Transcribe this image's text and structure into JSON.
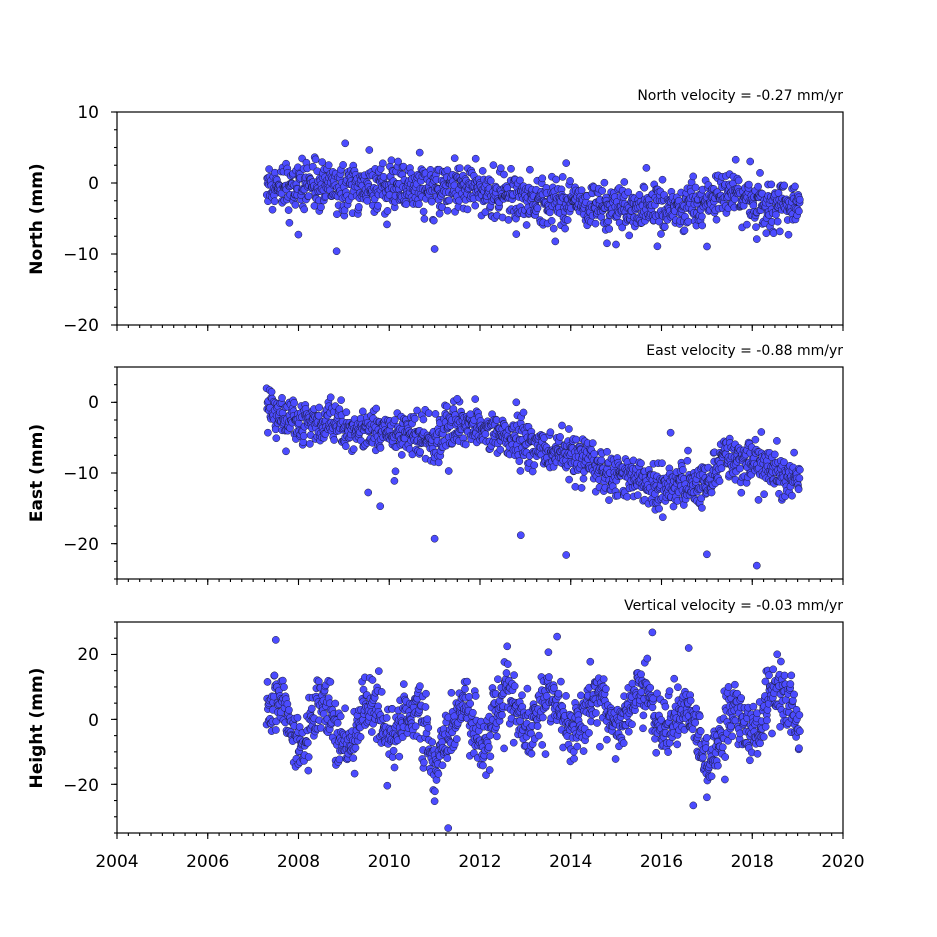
{
  "chart_data": [
    {
      "type": "scatter",
      "title": "North velocity = -0.27 mm/yr",
      "ylabel": "North (mm)",
      "xlim": [
        2004,
        2020
      ],
      "ylim": [
        -20,
        10
      ],
      "yticks": [
        10,
        0,
        -10,
        -20
      ],
      "ytick_labels": [
        "10",
        "0",
        "−10",
        "−20"
      ],
      "grid": false,
      "marker_color": "#4b4bff",
      "series": [
        {
          "x_range": [
            2007.3,
            2019.05
          ],
          "trend": [
            [
              2007.3,
              0.0
            ],
            [
              2008.5,
              -0.5
            ],
            [
              2010.0,
              -0.5
            ],
            [
              2011.5,
              -0.5
            ],
            [
              2013.0,
              -2.5
            ],
            [
              2015.0,
              -3.5
            ],
            [
              2016.5,
              -3.5
            ],
            [
              2017.3,
              -1.5
            ],
            [
              2018.5,
              -3.0
            ],
            [
              2019.05,
              -3.0
            ]
          ],
          "scatter_sd": 1.6,
          "outliers": [
            [
              2011.0,
              -9.3
            ],
            [
              2013.9,
              2.8
            ],
            [
              2014.8,
              -8.5
            ],
            [
              2018.1,
              -7.9
            ],
            [
              2012.8,
              -7.2
            ],
            [
              2007.8,
              -5.6
            ]
          ]
        }
      ]
    },
    {
      "type": "scatter",
      "title": "East velocity = -0.88 mm/yr",
      "ylabel": "East (mm)",
      "xlim": [
        2004,
        2020
      ],
      "ylim": [
        -25,
        5
      ],
      "yticks": [
        0,
        -10,
        -20
      ],
      "ytick_labels": [
        "0",
        "−10",
        "−20"
      ],
      "grid": false,
      "marker_color": "#4b4bff",
      "series": [
        {
          "x_range": [
            2007.3,
            2019.05
          ],
          "trend": [
            [
              2007.3,
              -1.0
            ],
            [
              2008.0,
              -3.0
            ],
            [
              2009.0,
              -3.5
            ],
            [
              2010.0,
              -4.0
            ],
            [
              2011.0,
              -5.5
            ],
            [
              2011.5,
              -3.0
            ],
            [
              2012.0,
              -3.5
            ],
            [
              2013.0,
              -6.0
            ],
            [
              2014.0,
              -7.5
            ],
            [
              2015.0,
              -10.0
            ],
            [
              2016.0,
              -11.5
            ],
            [
              2017.0,
              -12.0
            ],
            [
              2017.3,
              -7.5
            ],
            [
              2018.0,
              -8.5
            ],
            [
              2019.05,
              -11.0
            ]
          ],
          "scatter_sd": 1.5,
          "outliers": [
            [
              2011.0,
              -19.3
            ],
            [
              2012.9,
              -18.8
            ],
            [
              2013.9,
              -21.6
            ],
            [
              2017.0,
              -21.5
            ],
            [
              2018.1,
              -23.1
            ],
            [
              2009.8,
              -14.7
            ],
            [
              2012.8,
              0.0
            ],
            [
              2016.2,
              -4.3
            ],
            [
              2011.5,
              0.5
            ]
          ]
        }
      ]
    },
    {
      "type": "scatter",
      "title": "Vertical velocity = -0.03 mm/yr",
      "ylabel": "Height (mm)",
      "xlim": [
        2004,
        2020
      ],
      "ylim": [
        -35,
        30
      ],
      "yticks": [
        20,
        0,
        -20
      ],
      "ytick_labels": [
        "20",
        "0",
        "−20"
      ],
      "grid": false,
      "marker_color": "#4b4bff",
      "series": [
        {
          "x_range": [
            2007.3,
            2019.05
          ],
          "seasonal_amplitude": 6,
          "trend": [
            [
              2007.3,
              2.0
            ],
            [
              2009.0,
              -3.0
            ],
            [
              2010.0,
              2.0
            ],
            [
              2011.0,
              -7.0
            ],
            [
              2012.0,
              0.0
            ],
            [
              2013.0,
              3.0
            ],
            [
              2014.0,
              2.0
            ],
            [
              2015.0,
              3.0
            ],
            [
              2016.0,
              4.0
            ],
            [
              2017.0,
              -8.0
            ],
            [
              2018.0,
              1.0
            ],
            [
              2019.05,
              6.0
            ]
          ],
          "scatter_sd": 4.5,
          "outliers": [
            [
              2011.3,
              -33.5
            ],
            [
              2011.0,
              -25.2
            ],
            [
              2007.5,
              24.5
            ],
            [
              2013.7,
              25.5
            ],
            [
              2015.8,
              26.8
            ],
            [
              2016.7,
              -26.5
            ],
            [
              2017.0,
              -24.0
            ],
            [
              2016.6,
              22.0
            ],
            [
              2012.6,
              22.5
            ]
          ]
        }
      ]
    }
  ],
  "x_axis": {
    "ticks": [
      2004,
      2006,
      2008,
      2010,
      2012,
      2014,
      2016,
      2018,
      2020
    ],
    "tick_labels": [
      "2004",
      "2006",
      "2008",
      "2010",
      "2012",
      "2014",
      "2016",
      "2018",
      "2020"
    ],
    "minor_step": 0.25
  }
}
